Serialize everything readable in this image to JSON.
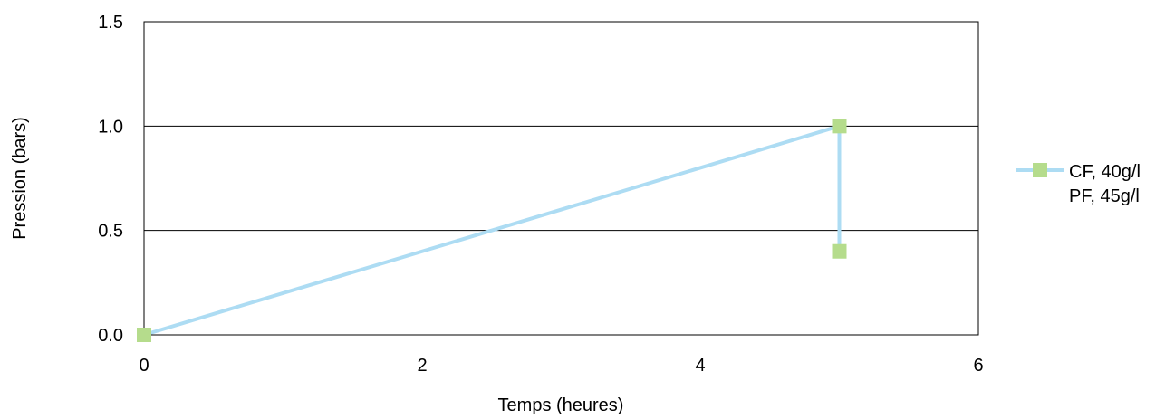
{
  "chart_data": {
    "type": "line",
    "title": "",
    "xlabel": "Temps (heures)",
    "ylabel": "Pression (bars)",
    "xlim": [
      0,
      6
    ],
    "ylim": [
      0,
      1.5
    ],
    "x_ticks": [
      0,
      2,
      4,
      6
    ],
    "x_tick_labels": [
      "0",
      "2",
      "4",
      "6"
    ],
    "y_ticks": [
      0,
      0.5,
      1.0,
      1.5
    ],
    "y_tick_labels": [
      "0.0",
      "0.5",
      "1.0",
      "1.5"
    ],
    "grid": "horizontal",
    "legend_position": "right",
    "series": [
      {
        "name": "CF, 40g/l PF, 45g/l",
        "legend_lines": [
          "CF, 40g/l",
          "PF, 45g/l"
        ],
        "line_color": "#ADDCF3",
        "marker_color": "#B5DC8C",
        "marker": "square",
        "points": [
          {
            "x": 0,
            "y": 0
          },
          {
            "x": 5,
            "y": 1.0
          },
          {
            "x": 5,
            "y": 0.4
          }
        ]
      }
    ]
  }
}
